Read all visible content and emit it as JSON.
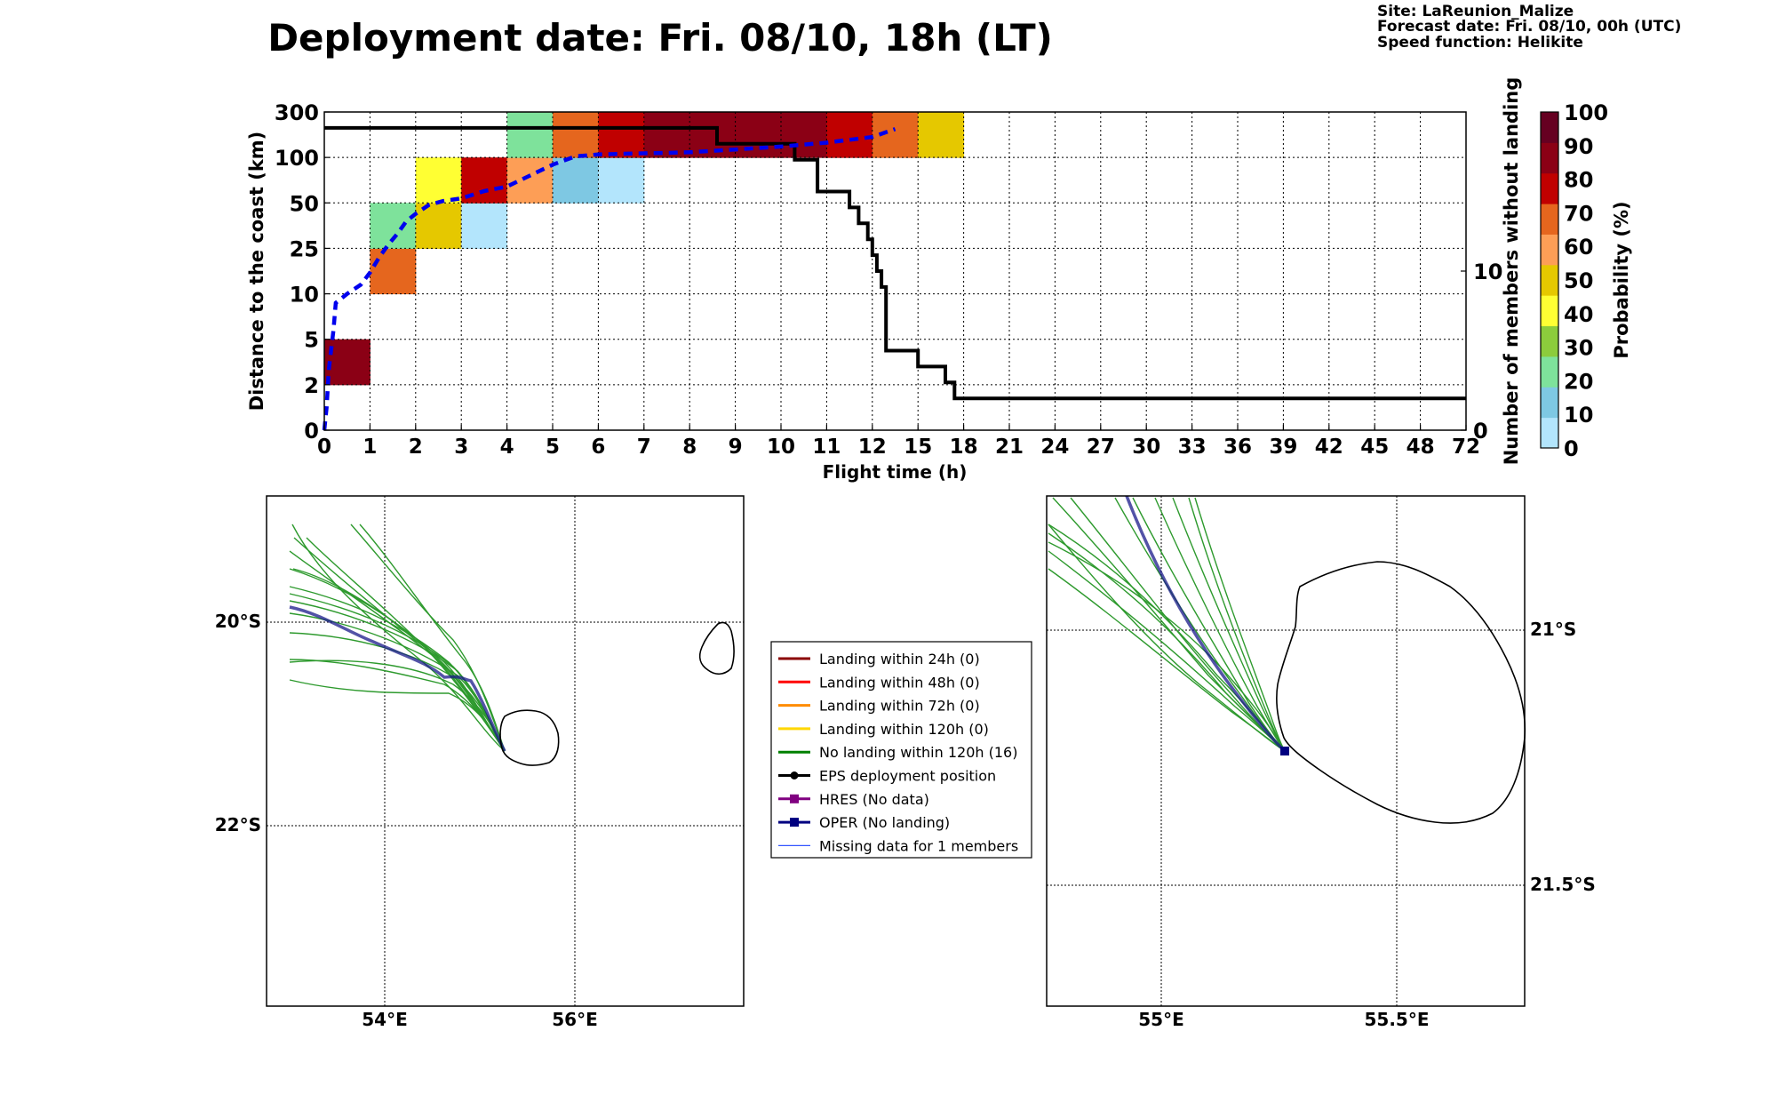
{
  "title": "Deployment date: Fri. 08/10, 18h (LT)",
  "info": {
    "site": "Site: LaReunion_Malize",
    "forecast": "Forecast date: Fri. 08/10, 00h (UTC)",
    "speed": "Speed function: Helikite"
  },
  "chart_data": [
    {
      "type": "heatmap",
      "xlabel": "Flight time (h)",
      "ylabel": "Distance to the coast (km)",
      "ylabel_right": "Number of members without landing",
      "x_tick_labels": [
        "0",
        "1",
        "2",
        "3",
        "4",
        "5",
        "6",
        "7",
        "8",
        "9",
        "10",
        "11",
        "12",
        "15",
        "18",
        "21",
        "24",
        "27",
        "30",
        "33",
        "36",
        "39",
        "42",
        "45",
        "48",
        "72"
      ],
      "y_tick_labels": [
        "0",
        "2",
        "5",
        "10",
        "25",
        "50",
        "100",
        "300"
      ],
      "right_axis_ticks": [
        {
          "label": "0",
          "value": 0
        },
        {
          "label": "10",
          "value": 10
        }
      ],
      "right_axis_range": [
        0,
        20
      ],
      "grid": true,
      "cells_note": "each cell: x = flight-time bin index, y = distance band index (0 = 0-2 km ... 6 = 100-300 km), p = probability %",
      "cells": [
        {
          "x": 0,
          "y": 1,
          "p": 98
        },
        {
          "x": 1,
          "y": 3,
          "p": 72
        },
        {
          "x": 1,
          "y": 4,
          "p": 22
        },
        {
          "x": 2,
          "y": 4,
          "p": 52
        },
        {
          "x": 2,
          "y": 5,
          "p": 42
        },
        {
          "x": 3,
          "y": 4,
          "p": 3
        },
        {
          "x": 3,
          "y": 5,
          "p": 85
        },
        {
          "x": 4,
          "y": 5,
          "p": 65
        },
        {
          "x": 4,
          "y": 6,
          "p": 25
        },
        {
          "x": 5,
          "y": 5,
          "p": 12
        },
        {
          "x": 5,
          "y": 6,
          "p": 72
        },
        {
          "x": 6,
          "y": 5,
          "p": 4
        },
        {
          "x": 6,
          "y": 6,
          "p": 85
        },
        {
          "x": 7,
          "y": 6,
          "p": 98
        },
        {
          "x": 8,
          "y": 6,
          "p": 98
        },
        {
          "x": 9,
          "y": 6,
          "p": 98
        },
        {
          "x": 10,
          "y": 6,
          "p": 98
        },
        {
          "x": 11,
          "y": 6,
          "p": 85
        },
        {
          "x": 12,
          "y": 6,
          "p": 72
        },
        {
          "x": 13,
          "y": 6,
          "p": 52
        }
      ],
      "members_without_landing": {
        "x": [
          0,
          8.6,
          8.6,
          10.3,
          10.3,
          10.8,
          10.8,
          11.5,
          11.5,
          11.7,
          11.7,
          11.9,
          11.9,
          12.0,
          12.0,
          12.1,
          12.1,
          12.2,
          12.2,
          12.3,
          12.3,
          13.0,
          13.0,
          13.6,
          13.6,
          13.8,
          13.8,
          25
        ],
        "y": [
          19,
          19,
          18,
          18,
          17,
          17,
          15,
          15,
          14,
          14,
          13,
          13,
          12,
          12,
          11,
          11,
          10,
          10,
          9,
          9,
          5,
          5,
          4,
          4,
          3,
          3,
          2,
          2
        ]
      },
      "mean_distance": {
        "x": [
          0,
          0.05,
          0.1,
          0.2,
          0.25,
          0.5,
          0.6,
          0.8,
          1.0,
          1.2,
          1.4,
          1.6,
          1.8,
          2.0,
          2.3,
          2.6,
          3.0,
          3.5,
          4.0,
          4.5,
          5.0,
          5.5,
          6.0,
          6.5,
          7.0,
          7.5,
          8.0,
          9.0,
          10.0,
          11.0,
          12.0,
          12.5
        ],
        "y": [
          0,
          1,
          3,
          6,
          9,
          10,
          11,
          13,
          17,
          22,
          27,
          33,
          40,
          44,
          49,
          52,
          55,
          63,
          68,
          80,
          92,
          105,
          113,
          116,
          118,
          120,
          123,
          135,
          148,
          165,
          190,
          225
        ]
      },
      "colorbar": {
        "label": "Probability (%)",
        "ticks": [
          "0",
          "10",
          "20",
          "30",
          "40",
          "50",
          "60",
          "70",
          "80",
          "90",
          "100"
        ],
        "colors": [
          "#b3e5fc",
          "#7ec8e3",
          "#7ee29b",
          "#8ccc3c",
          "#ffff33",
          "#e5c800",
          "#fd9e56",
          "#e5661e",
          "#c00000",
          "#8b0015",
          "#660021"
        ]
      }
    },
    {
      "type": "map",
      "x_tick_labels": [
        "54°E",
        "56°E"
      ],
      "y_tick_labels": [
        "20°S",
        "22°S"
      ],
      "xlim": [
        52.8,
        57.8
      ],
      "ylim": [
        -23.9,
        -18.9
      ]
    },
    {
      "type": "map",
      "x_tick_labels": [
        "55°E",
        "55.5°E"
      ],
      "y_tick_labels": [
        "21°S",
        "21.5°S"
      ],
      "xlim": [
        54.75,
        55.77
      ],
      "ylim": [
        -21.7,
        -20.75
      ]
    }
  ],
  "legend": [
    {
      "label": "Landing within 24h (0)",
      "color": "#8b0000",
      "marker": "none"
    },
    {
      "label": "Landing within 48h (0)",
      "color": "#ff0000",
      "marker": "none"
    },
    {
      "label": "Landing within 72h (0)",
      "color": "#ff8c00",
      "marker": "none"
    },
    {
      "label": "Landing within 120h (0)",
      "color": "#ffd700",
      "marker": "none"
    },
    {
      "label": "No landing within 120h (16)",
      "color": "#008000",
      "marker": "none"
    },
    {
      "label": "EPS deployment position",
      "color": "#000000",
      "marker": "circle"
    },
    {
      "label": "HRES (No data)",
      "color": "#800080",
      "marker": "square"
    },
    {
      "label": "OPER (No landing)",
      "color": "#000080",
      "marker": "square"
    },
    {
      "label": "Missing data for 1 members",
      "color": "#3355ff",
      "marker": "thin"
    }
  ]
}
